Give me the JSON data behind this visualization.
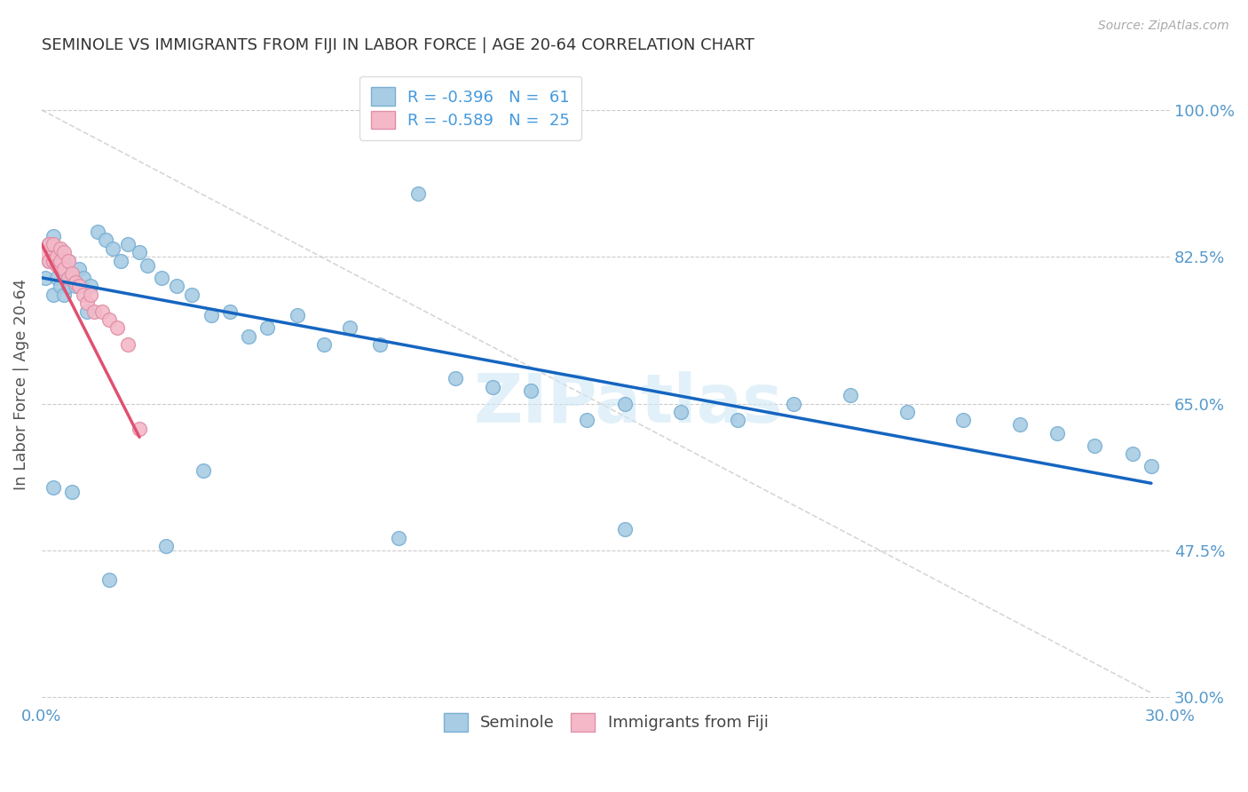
{
  "title": "SEMINOLE VS IMMIGRANTS FROM FIJI IN LABOR FORCE | AGE 20-64 CORRELATION CHART",
  "source": "Source: ZipAtlas.com",
  "ylabel": "In Labor Force | Age 20-64",
  "xlim": [
    0.0,
    0.3
  ],
  "ylim": [
    0.3,
    1.05
  ],
  "watermark": "ZIPatlas",
  "legend_r1": "R = -0.396",
  "legend_n1": "N =  61",
  "legend_r2": "R = -0.589",
  "legend_n2": "N =  25",
  "color_blue": "#a8cce4",
  "color_pink": "#f4b8c8",
  "color_trend_blue": "#1565c0",
  "color_trend_pink": "#e05070",
  "color_trend_gray": "#cccccc",
  "seminole_x": [
    0.001,
    0.002,
    0.002,
    0.003,
    0.003,
    0.004,
    0.004,
    0.005,
    0.005,
    0.006,
    0.006,
    0.007,
    0.007,
    0.008,
    0.009,
    0.01,
    0.011,
    0.012,
    0.013,
    0.015,
    0.017,
    0.019,
    0.021,
    0.023,
    0.026,
    0.028,
    0.032,
    0.036,
    0.04,
    0.045,
    0.05,
    0.055,
    0.06,
    0.068,
    0.075,
    0.082,
    0.09,
    0.1,
    0.11,
    0.12,
    0.13,
    0.145,
    0.155,
    0.17,
    0.185,
    0.2,
    0.215,
    0.23,
    0.245,
    0.26,
    0.27,
    0.28,
    0.29,
    0.295,
    0.155,
    0.095,
    0.043,
    0.033,
    0.018,
    0.008,
    0.003
  ],
  "seminole_y": [
    0.8,
    0.84,
    0.82,
    0.85,
    0.78,
    0.835,
    0.8,
    0.83,
    0.79,
    0.82,
    0.78,
    0.82,
    0.79,
    0.8,
    0.79,
    0.81,
    0.8,
    0.76,
    0.79,
    0.855,
    0.845,
    0.835,
    0.82,
    0.84,
    0.83,
    0.815,
    0.8,
    0.79,
    0.78,
    0.755,
    0.76,
    0.73,
    0.74,
    0.755,
    0.72,
    0.74,
    0.72,
    0.9,
    0.68,
    0.67,
    0.665,
    0.63,
    0.65,
    0.64,
    0.63,
    0.65,
    0.66,
    0.64,
    0.63,
    0.625,
    0.615,
    0.6,
    0.59,
    0.575,
    0.5,
    0.49,
    0.57,
    0.48,
    0.44,
    0.545,
    0.55
  ],
  "fiji_x": [
    0.001,
    0.002,
    0.002,
    0.003,
    0.003,
    0.004,
    0.004,
    0.005,
    0.005,
    0.006,
    0.006,
    0.007,
    0.007,
    0.008,
    0.009,
    0.01,
    0.011,
    0.012,
    0.013,
    0.014,
    0.016,
    0.018,
    0.02,
    0.023,
    0.026
  ],
  "fiji_y": [
    0.83,
    0.84,
    0.82,
    0.84,
    0.82,
    0.825,
    0.815,
    0.835,
    0.82,
    0.83,
    0.81,
    0.82,
    0.8,
    0.805,
    0.795,
    0.79,
    0.78,
    0.77,
    0.78,
    0.76,
    0.76,
    0.75,
    0.74,
    0.72,
    0.62
  ],
  "blue_trend_x": [
    0.0,
    0.295
  ],
  "blue_trend_y": [
    0.8,
    0.555
  ],
  "pink_trend_x": [
    0.0,
    0.026
  ],
  "pink_trend_y": [
    0.84,
    0.61
  ],
  "gray_trend_x": [
    0.0,
    0.295
  ],
  "gray_trend_y": [
    1.0,
    0.305
  ]
}
